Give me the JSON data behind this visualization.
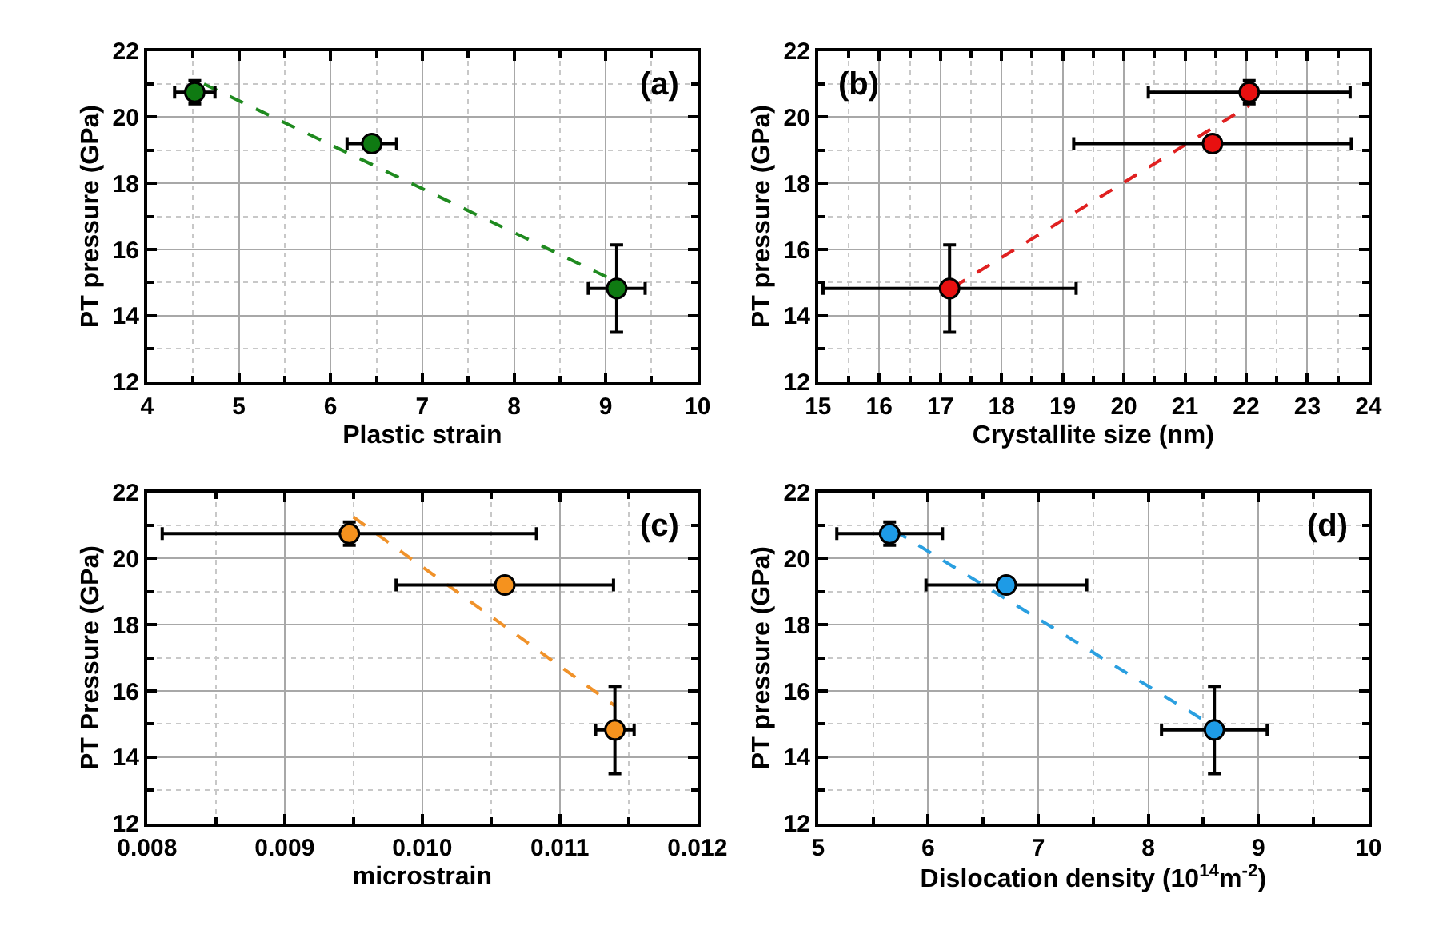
{
  "chart_data": [
    {
      "type": "scatter",
      "xlabel": "Plastic strain",
      "ylabel": "PT pressure (GPa)",
      "annotations": [
        "(a)"
      ],
      "xlim": [
        4,
        10
      ],
      "xticks": [
        4,
        5,
        6,
        7,
        8,
        9,
        10
      ],
      "ylim": [
        12,
        22
      ],
      "yticks": [
        12,
        14,
        16,
        18,
        20,
        22
      ],
      "grid": true,
      "series": [
        {
          "color": "#0f7a12",
          "marker": "circle",
          "x": [
            4.52,
            6.45,
            9.12
          ],
          "values": [
            20.75,
            19.2,
            14.82
          ],
          "errors": [
            0.35,
            null,
            1.32
          ],
          "xerrors": [
            0.22,
            0.27,
            0.31
          ]
        },
        {
          "type": "line",
          "color": "#1f8a1f",
          "marker": "none",
          "line_style": "dashed",
          "x": [
            4.62,
            9.1
          ],
          "values": [
            21.0,
            15.05
          ]
        }
      ]
    },
    {
      "type": "scatter",
      "xlabel": "Crystallite size (nm)",
      "ylabel": "PT pressure (GPa)",
      "annotations": [
        "(b)"
      ],
      "xlim": [
        15,
        24
      ],
      "xticks": [
        15,
        16,
        17,
        18,
        19,
        20,
        21,
        22,
        23,
        24
      ],
      "ylim": [
        12,
        22
      ],
      "yticks": [
        12,
        14,
        16,
        18,
        20,
        22
      ],
      "grid": true,
      "series": [
        {
          "color": "#e81010",
          "marker": "circle",
          "x": [
            22.05,
            21.45,
            17.15
          ],
          "values": [
            20.75,
            19.2,
            14.82
          ],
          "errors": [
            0.35,
            null,
            1.32
          ],
          "xerrors": [
            1.65,
            2.27,
            2.07
          ]
        },
        {
          "type": "line",
          "color": "#e02020",
          "marker": "none",
          "line_style": "dashed",
          "x": [
            17.2,
            22.05
          ],
          "values": [
            14.85,
            20.35
          ]
        }
      ]
    },
    {
      "type": "scatter",
      "xlabel": "microstrain",
      "ylabel": "PT Pressure (GPa)",
      "annotations": [
        "(c)"
      ],
      "xlim": [
        0.008,
        0.012
      ],
      "xticks": [
        {
          "value": 0.008,
          "label": "0.008"
        },
        {
          "value": 0.009,
          "label": "0.009"
        },
        {
          "value": 0.01,
          "label": "0.010"
        },
        {
          "value": 0.011,
          "label": "0.011"
        },
        {
          "value": 0.012,
          "label": "0.012"
        }
      ],
      "ylim": [
        12,
        22
      ],
      "yticks": [
        12,
        14,
        16,
        18,
        20,
        22
      ],
      "grid": true,
      "series": [
        {
          "color": "#f5921e",
          "marker": "circle",
          "x": [
            0.00947,
            0.0106,
            0.0114
          ],
          "values": [
            20.75,
            19.2,
            14.82
          ],
          "errors": [
            0.35,
            null,
            1.32
          ],
          "xerrors": [
            0.00136,
            0.00079,
            0.00014
          ]
        },
        {
          "type": "line",
          "color": "#f0922a",
          "marker": "none",
          "line_style": "dashed",
          "x": [
            0.0095,
            0.0114
          ],
          "values": [
            21.25,
            15.55
          ]
        }
      ]
    },
    {
      "type": "scatter",
      "xlabel": "Dislocation density (10$^{14}$m$^{-2}$)",
      "ylabel": "PT pressure (GPa)",
      "annotations": [
        "(d)"
      ],
      "xlim": [
        5,
        10
      ],
      "xticks": [
        5,
        6,
        7,
        8,
        9,
        10
      ],
      "ylim": [
        12,
        22
      ],
      "yticks": [
        12,
        14,
        16,
        18,
        20,
        22
      ],
      "grid": true,
      "series": [
        {
          "color": "#1e9be6",
          "marker": "circle",
          "x": [
            5.65,
            6.71,
            8.6
          ],
          "values": [
            20.75,
            19.2,
            14.82
          ],
          "errors": [
            0.35,
            null,
            1.32
          ],
          "xerrors": [
            0.48,
            0.73,
            0.48
          ]
        },
        {
          "type": "line",
          "color": "#2a9fe0",
          "marker": "none",
          "line_style": "dashed",
          "x": [
            5.69,
            8.56
          ],
          "values": [
            20.85,
            15.0
          ]
        }
      ]
    }
  ]
}
